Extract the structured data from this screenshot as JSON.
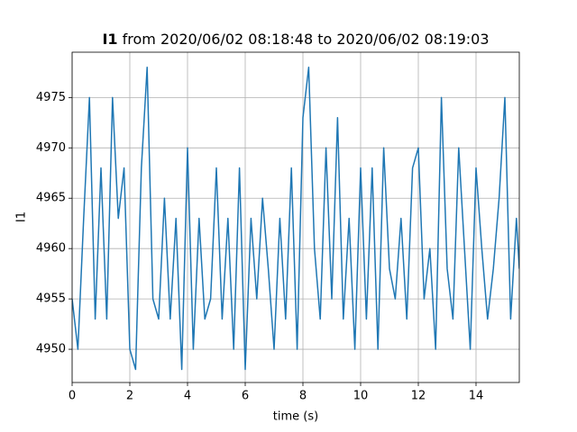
{
  "chart_data": {
    "type": "line",
    "title": {
      "bold": "I1",
      "text": "from 2020/06/02 08:18:48 to 2020/06/02 08:19:03"
    },
    "xlabel": "time (s)",
    "ylabel": "I1",
    "x": [
      0,
      0.2,
      0.4,
      0.6,
      0.8,
      1.0,
      1.2,
      1.4,
      1.6,
      1.8,
      2.0,
      2.2,
      2.4,
      2.6,
      2.8,
      3.0,
      3.2,
      3.4,
      3.6,
      3.8,
      4.0,
      4.2,
      4.4,
      4.6,
      4.8,
      5.0,
      5.2,
      5.4,
      5.6,
      5.8,
      6.0,
      6.2,
      6.4,
      6.6,
      6.8,
      7.0,
      7.2,
      7.4,
      7.6,
      7.8,
      8.0,
      8.2,
      8.4,
      8.6,
      8.8,
      9.0,
      9.2,
      9.4,
      9.6,
      9.8,
      10.0,
      10.2,
      10.4,
      10.6,
      10.8,
      11.0,
      11.2,
      11.4,
      11.6,
      11.8,
      12.0,
      12.2,
      12.4,
      12.6,
      12.8,
      13.0,
      13.2,
      13.4,
      13.6,
      13.8,
      14.0,
      14.2,
      14.4,
      14.6,
      14.8,
      15.0,
      15.2,
      15.4,
      15.5
    ],
    "series": [
      {
        "name": "I1",
        "color": "#1f77b4",
        "values": [
          4955,
          4950,
          4963,
          4975,
          4953,
          4968,
          4953,
          4975,
          4963,
          4968,
          4950,
          4948,
          4968,
          4978,
          4955,
          4953,
          4965,
          4953,
          4963,
          4948,
          4970,
          4950,
          4963,
          4953,
          4955,
          4968,
          4953,
          4963,
          4950,
          4968,
          4948,
          4963,
          4955,
          4965,
          4958,
          4950,
          4963,
          4953,
          4968,
          4950,
          4973,
          4978,
          4960,
          4953,
          4970,
          4955,
          4973,
          4953,
          4963,
          4950,
          4968,
          4953,
          4968,
          4950,
          4970,
          4958,
          4955,
          4963,
          4953,
          4968,
          4970,
          4955,
          4960,
          4950,
          4975,
          4958,
          4953,
          4970,
          4960,
          4950,
          4968,
          4960,
          4953,
          4958,
          4965,
          4975,
          4953,
          4963,
          4958
        ]
      }
    ],
    "xlim": [
      0,
      15.5
    ],
    "ylim": [
      4946.7,
      4979.5
    ],
    "xticks": [
      0,
      2,
      4,
      6,
      8,
      10,
      12,
      14
    ],
    "yticks": [
      4950,
      4955,
      4960,
      4965,
      4970,
      4975
    ],
    "grid": true
  }
}
